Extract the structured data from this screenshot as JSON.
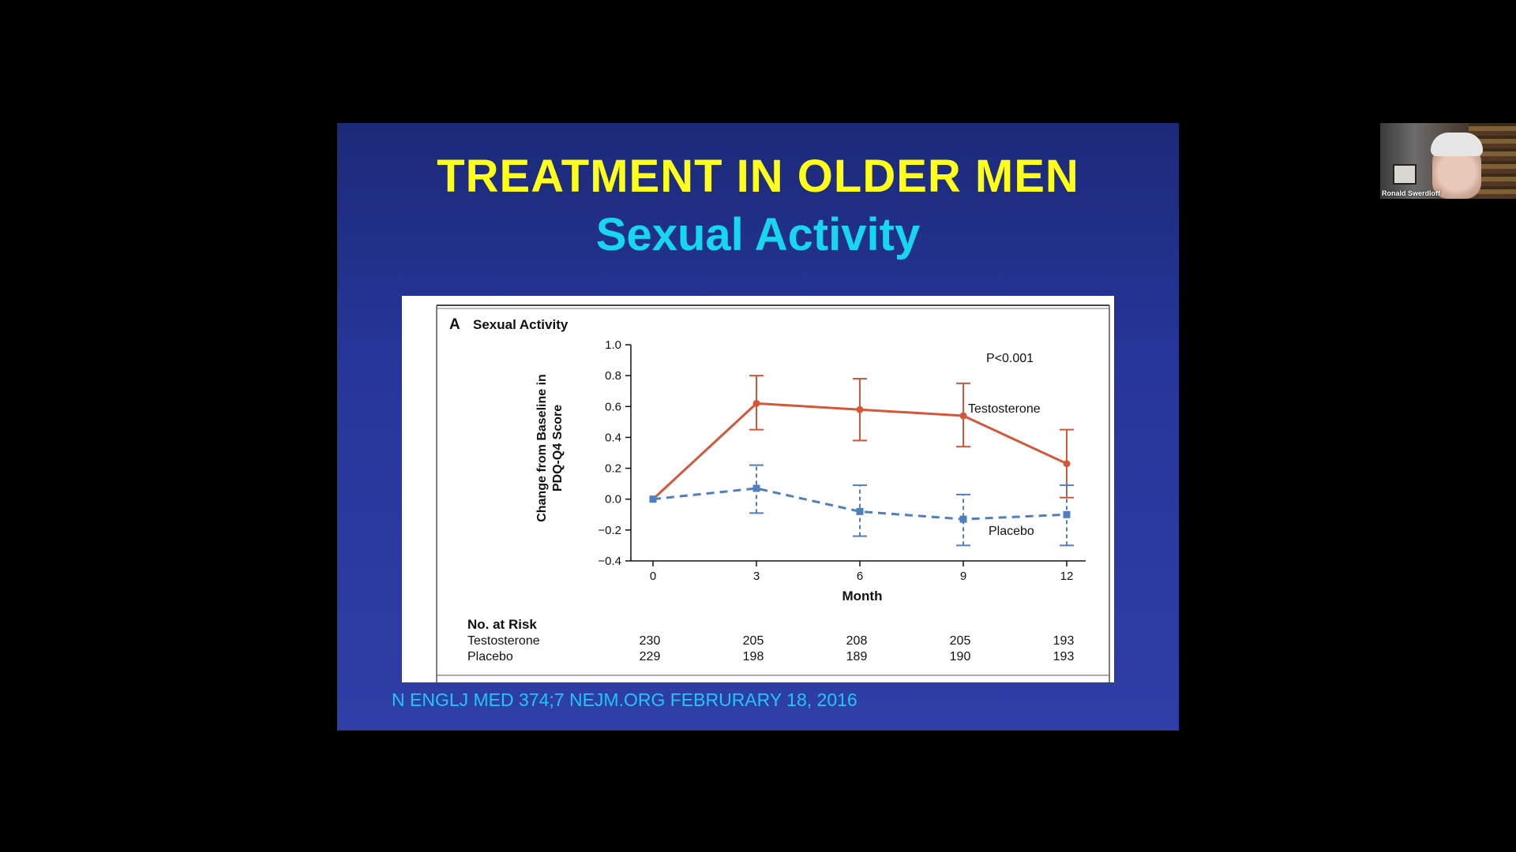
{
  "slide": {
    "title": "TREATMENT IN OLDER MEN",
    "subtitle": "Sexual Activity",
    "citation": "N ENGLJ MED 374;7 NEJM.ORG FEBRURARY 18, 2016"
  },
  "webcam": {
    "participant_name": "Ronald Swerdloff"
  },
  "colors": {
    "slide_bg": "#2b3a9e",
    "title": "#ffff1a",
    "subtitle": "#19d6f0",
    "testosterone": "#d4573a",
    "placebo": "#4f7fbf"
  },
  "chart_data": {
    "type": "line",
    "panel_letter": "A",
    "title": "Sexual Activity",
    "xlabel": "Month",
    "ylabel_lines": [
      "Change from Baseline in",
      "PDQ-Q4 Score"
    ],
    "x": [
      0,
      3,
      6,
      9,
      12
    ],
    "xlim": [
      0,
      12
    ],
    "ylim": [
      -0.4,
      1.0
    ],
    "yticks": [
      -0.4,
      -0.2,
      0.0,
      0.2,
      0.4,
      0.6,
      0.8,
      1.0
    ],
    "ytick_labels": [
      "−0.4",
      "−0.2",
      "0.0",
      "0.2",
      "0.4",
      "0.6",
      "0.8",
      "1.0"
    ],
    "xtick_labels": [
      "0",
      "3",
      "6",
      "9",
      "12"
    ],
    "annotation": "P<0.001",
    "series": [
      {
        "name": "Testosterone",
        "color": "#d4573a",
        "style": "solid",
        "marker": "circle",
        "values": [
          0.0,
          0.62,
          0.58,
          0.54,
          0.23
        ],
        "err_low": [
          null,
          0.45,
          0.38,
          0.34,
          0.01
        ],
        "err_high": [
          null,
          0.8,
          0.78,
          0.75,
          0.45
        ]
      },
      {
        "name": "Placebo",
        "color": "#4f7fbf",
        "style": "dashed",
        "marker": "square",
        "values": [
          0.0,
          0.07,
          -0.08,
          -0.13,
          -0.1
        ],
        "err_low": [
          null,
          -0.09,
          -0.24,
          -0.3,
          -0.3
        ],
        "err_high": [
          null,
          0.22,
          0.09,
          0.03,
          0.09
        ]
      }
    ],
    "risk_table": {
      "header": "No. at Risk",
      "rows": [
        {
          "label": "Testosterone",
          "values": [
            "230",
            "205",
            "208",
            "205",
            "193"
          ]
        },
        {
          "label": "Placebo",
          "values": [
            "229",
            "198",
            "189",
            "190",
            "193"
          ]
        }
      ]
    }
  }
}
